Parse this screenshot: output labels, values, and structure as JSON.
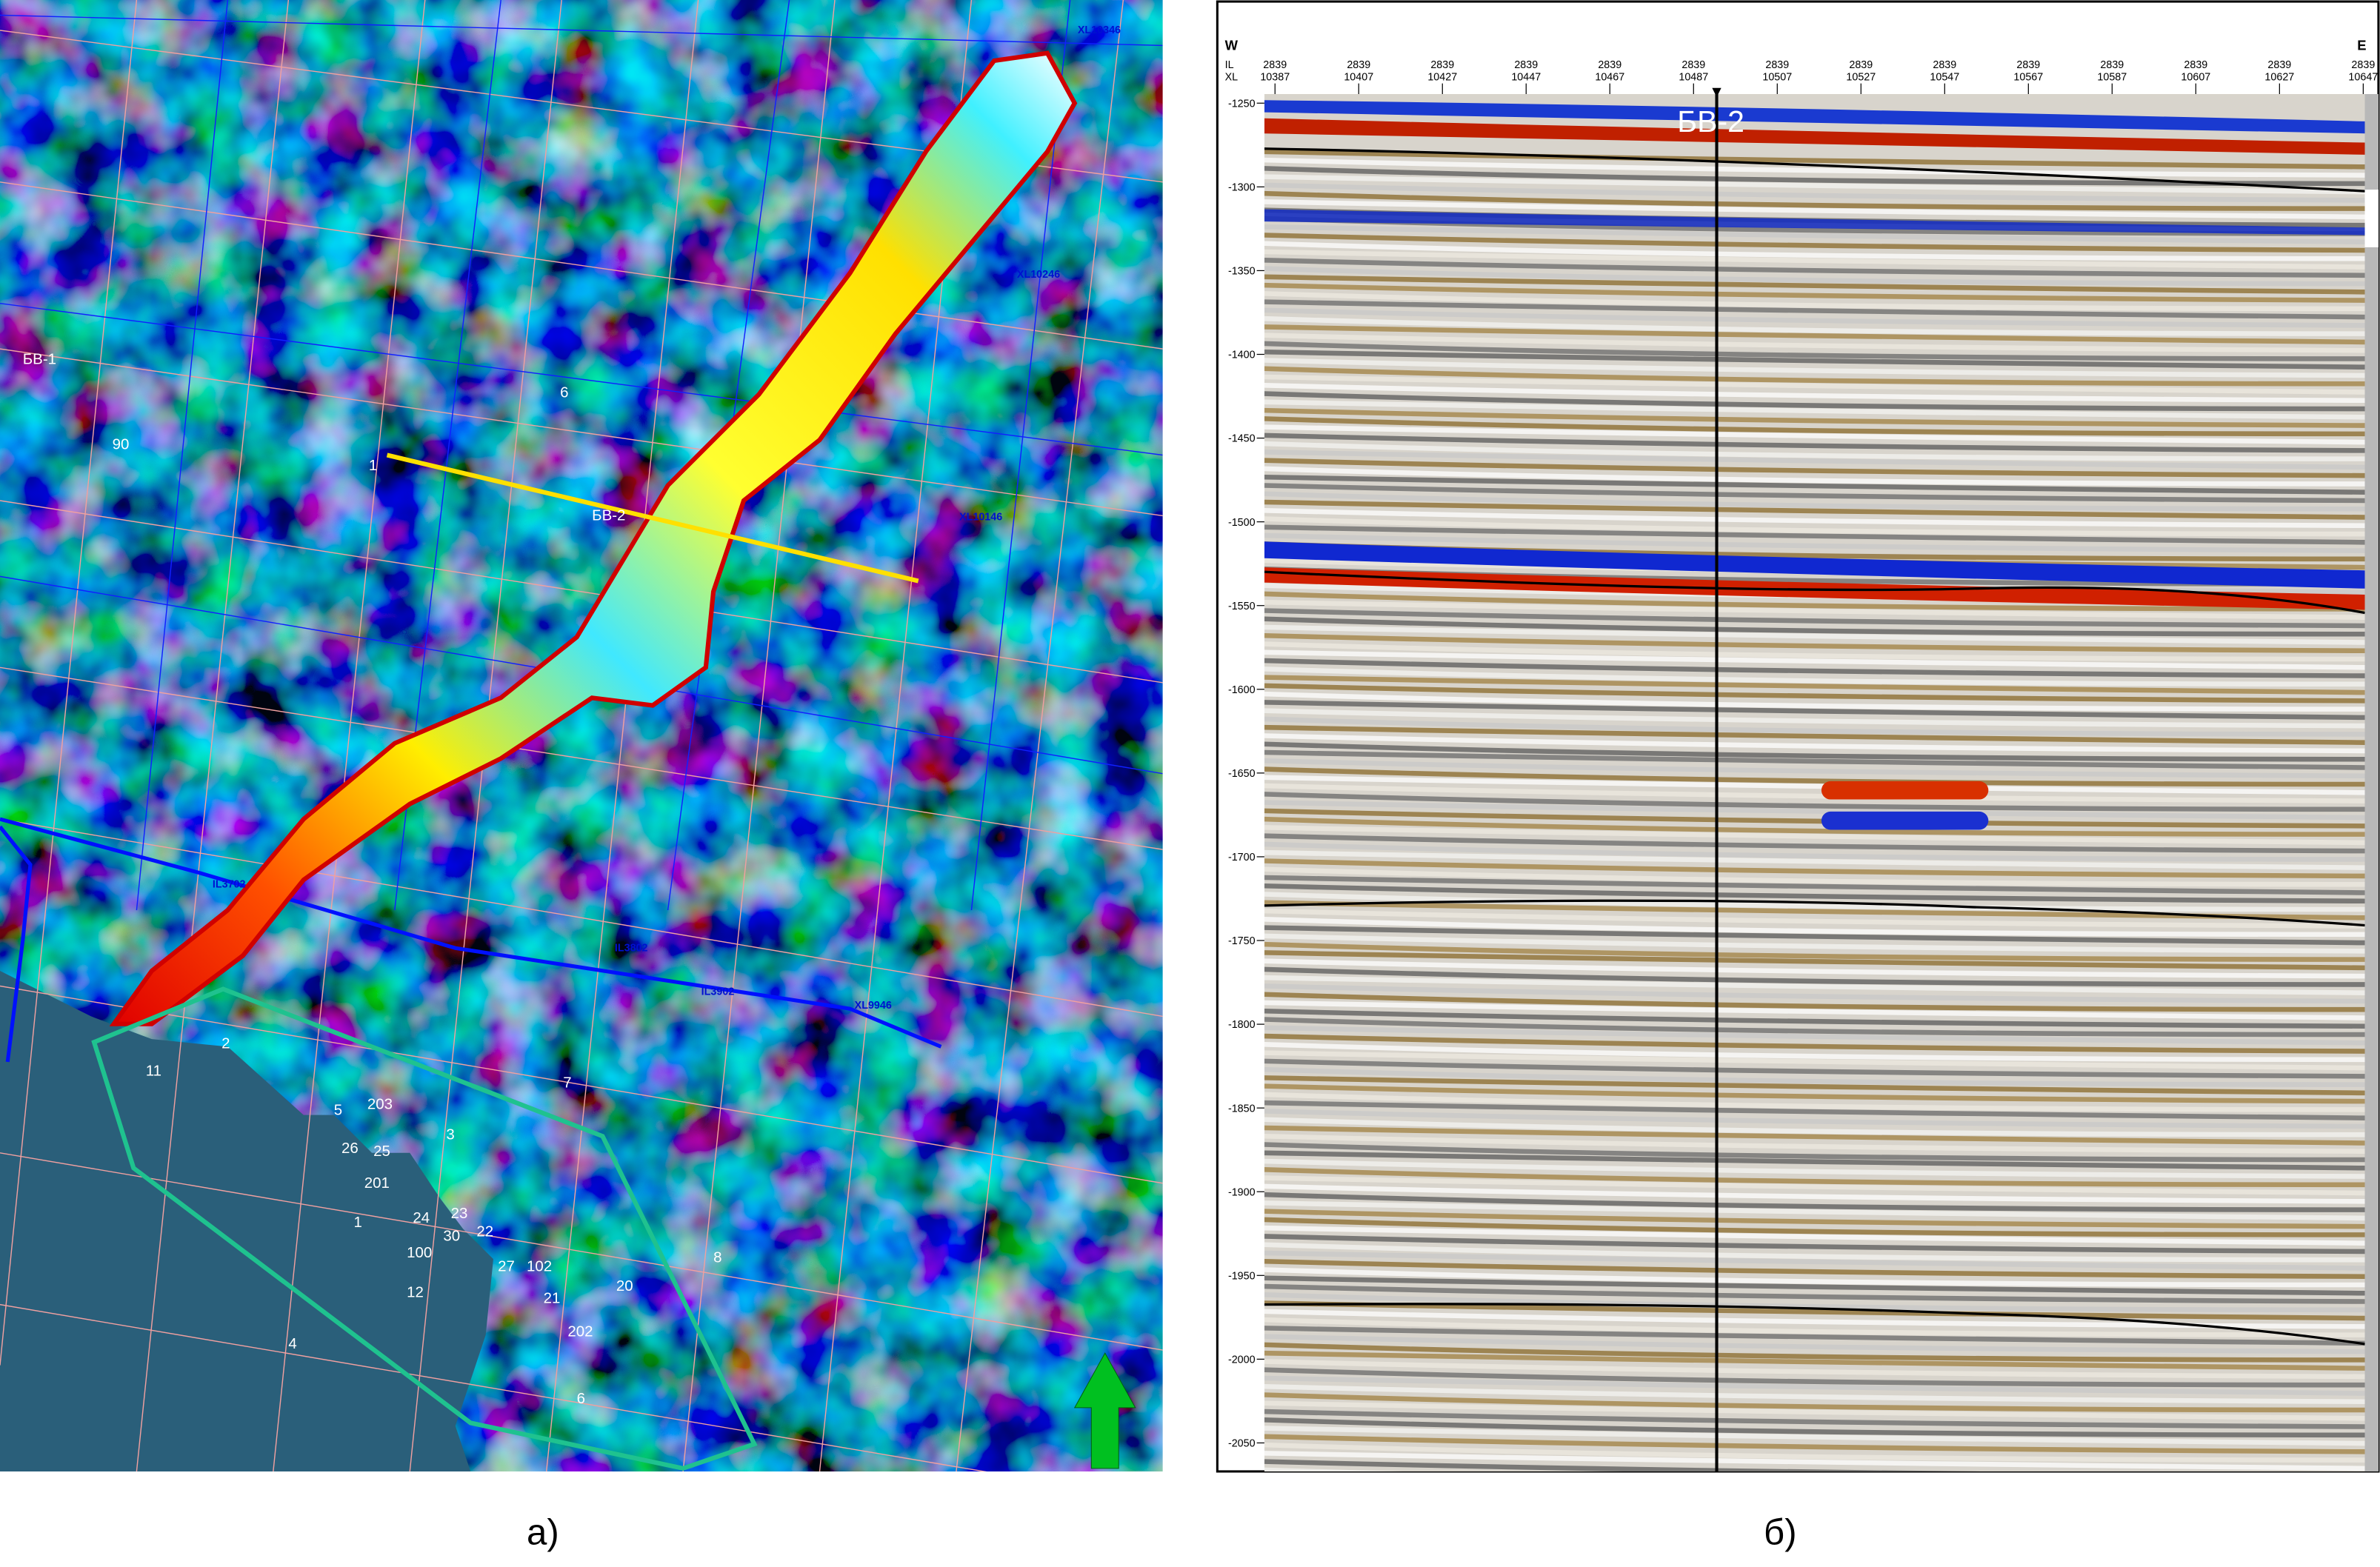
{
  "map": {
    "caption": "а)",
    "grid_labels": [
      "XL10346",
      "XL10246",
      "XL10146",
      "IL3702",
      "IL3802",
      "IL3902",
      "XL9946"
    ],
    "wells": [
      {
        "label": "БВ-1"
      },
      {
        "label": "90"
      },
      {
        "label": "6"
      },
      {
        "label": "1"
      },
      {
        "label": "БВ-2"
      },
      {
        "label": "2"
      },
      {
        "label": "11"
      },
      {
        "label": "5"
      },
      {
        "label": "203"
      },
      {
        "label": "3"
      },
      {
        "label": "26"
      },
      {
        "label": "25"
      },
      {
        "label": "201"
      },
      {
        "label": "1"
      },
      {
        "label": "24"
      },
      {
        "label": "23"
      },
      {
        "label": "30"
      },
      {
        "label": "22"
      },
      {
        "label": "100"
      },
      {
        "label": "27"
      },
      {
        "label": "102"
      },
      {
        "label": "12"
      },
      {
        "label": "21"
      },
      {
        "label": "20"
      },
      {
        "label": "202"
      },
      {
        "label": "4"
      },
      {
        "label": "6"
      },
      {
        "label": "7"
      },
      {
        "label": "8"
      }
    ],
    "north_arrow": "north-arrow-icon",
    "colors": {
      "channel_outline": "#d00000",
      "license_outline": "#1fc28f",
      "profile_line": "#ffe000",
      "land": "#2a5f7a"
    }
  },
  "section": {
    "caption": "б)",
    "west_label": "W",
    "east_label": "E",
    "il_label": "IL",
    "xl_label": "XL",
    "well_label": "БВ-2",
    "inlines": [
      "2839",
      "2839",
      "2839",
      "2839",
      "2839",
      "2839",
      "2839",
      "2839",
      "2839",
      "2839",
      "2839",
      "2839",
      "2839",
      "2839"
    ],
    "crosslines": [
      "10387",
      "10407",
      "10427",
      "10447",
      "10467",
      "10487",
      "10507",
      "10527",
      "10547",
      "10567",
      "10587",
      "10607",
      "10627",
      "10647"
    ],
    "depth_ticks": [
      "-1250",
      "-1300",
      "-1350",
      "-1400",
      "-1450",
      "-1500",
      "-1550",
      "-1600",
      "-1650",
      "-1700",
      "-1750",
      "-1800",
      "-1850",
      "-1900",
      "-1950",
      "-2000",
      "-2050"
    ]
  }
}
